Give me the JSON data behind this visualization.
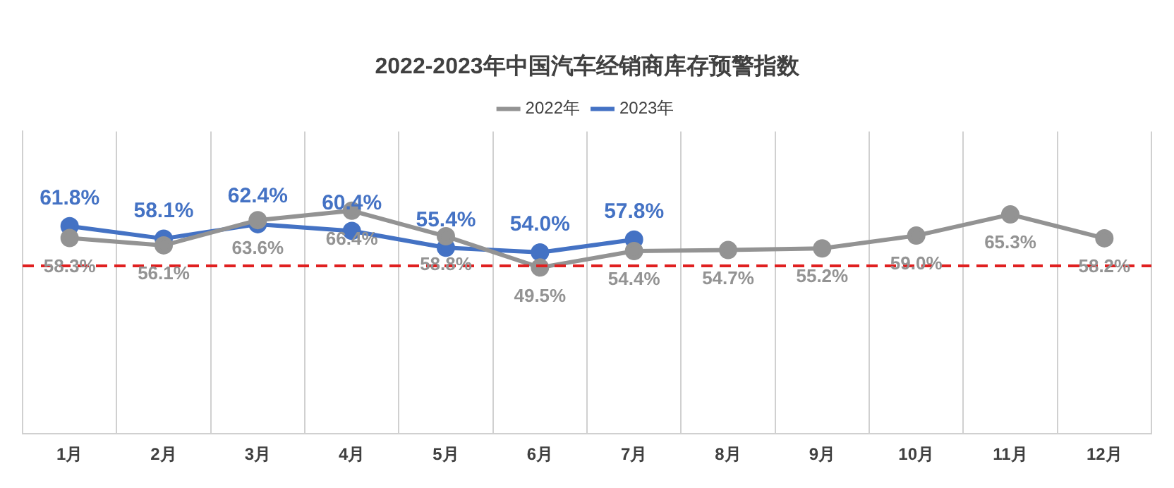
{
  "chart_data": {
    "type": "line",
    "title": "2022-2023年中国汽车经销商库存预警指数",
    "categories": [
      "1月",
      "2月",
      "3月",
      "4月",
      "5月",
      "6月",
      "7月",
      "8月",
      "9月",
      "10月",
      "11月",
      "12月"
    ],
    "series": [
      {
        "name": "2022年",
        "color": "#939393",
        "values": [
          58.3,
          56.1,
          63.6,
          66.4,
          58.8,
          49.5,
          54.4,
          54.7,
          55.2,
          59.0,
          65.3,
          58.2
        ],
        "value_labels": [
          "58.3%",
          "56.1%",
          "63.6%",
          "66.4%",
          "58.8%",
          "49.5%",
          "54.4%",
          "54.7%",
          "55.2%",
          "59.0%",
          "65.3%",
          "58.2%"
        ]
      },
      {
        "name": "2023年",
        "color": "#4472c4",
        "values": [
          61.8,
          58.1,
          62.4,
          60.4,
          55.4,
          54.0,
          57.8,
          null,
          null,
          null,
          null,
          null
        ],
        "value_labels": [
          "61.8%",
          "58.1%",
          "62.4%",
          "60.4%",
          "55.4%",
          "54.0%",
          "57.8%",
          null,
          null,
          null,
          null,
          null
        ]
      }
    ],
    "tick_labels": "x",
    "ref_lines": [
      {
        "axis": "y",
        "value": 50,
        "color": "#e02020",
        "line_style": "dashed"
      }
    ],
    "grid": "x",
    "legend": "top",
    "marker": "circle",
    "line_style": "solid"
  }
}
